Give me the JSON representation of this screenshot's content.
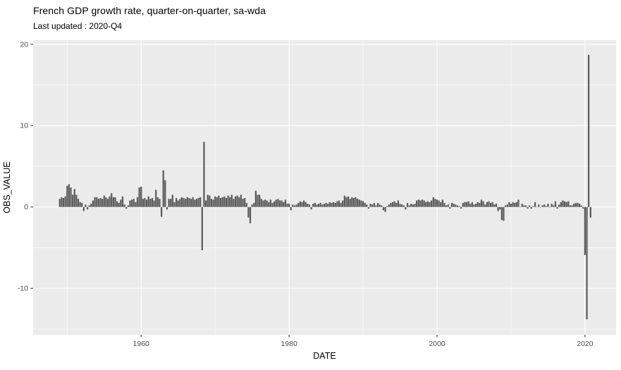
{
  "title": "French GDP growth rate, quarter-on-quarter, sa-wda",
  "subtitle": "Last updated : 2020-Q4",
  "chart_data": {
    "type": "bar",
    "title": "French GDP growth rate, quarter-on-quarter, sa-wda",
    "subtitle": "Last updated : 2020-Q4",
    "xlabel": "DATE",
    "ylabel": "OBS_VALUE",
    "legend": false,
    "grid": true,
    "theme": "ggplot-gray",
    "x_tick_labels": [
      "1960",
      "1980",
      "2000",
      "2020"
    ],
    "x_tick_years": [
      1960,
      1980,
      2000,
      2020
    ],
    "x_minor_years": [
      1950,
      1970,
      1990,
      2010
    ],
    "y_tick_labels": [
      "20",
      "10",
      "0",
      "-10"
    ],
    "y_ticks": [
      20,
      10,
      0,
      -10
    ],
    "y_minor": [
      15,
      5,
      -5,
      -15
    ],
    "xlim": [
      1945.4,
      2024.2
    ],
    "ylim": [
      -15.7,
      20.5
    ],
    "frequency": "quarterly",
    "start_period": "1949-Q1",
    "end_period": "2020-Q4",
    "notable_points": {
      "1968-Q2": -5.3,
      "1968-Q3": 8.0,
      "2008-Q4": -1.6,
      "2009-Q1": -1.7,
      "2020-Q1": -5.9,
      "2020-Q2": -13.8,
      "2020-Q3": 18.7,
      "2020-Q4": -1.3
    },
    "values": [
      1.0,
      1.2,
      1.1,
      1.3,
      2.6,
      2.8,
      2.4,
      1.5,
      2.2,
      1.5,
      1.0,
      0.6,
      0.5,
      -0.5,
      0.3,
      -0.3,
      0.2,
      0.4,
      0.8,
      1.2,
      1.2,
      1.0,
      1.1,
      1.0,
      1.4,
      1.2,
      1.0,
      1.3,
      1.7,
      1.2,
      1.2,
      0.7,
      0.5,
      0.9,
      1.3,
      0.3,
      -0.2,
      0.2,
      0.8,
      0.9,
      1.0,
      0.6,
      1.2,
      2.4,
      2.5,
      1.0,
      1.1,
      0.9,
      1.3,
      1.0,
      1.1,
      0.8,
      2.1,
      1.2,
      1.0,
      -1.2,
      4.5,
      3.3,
      -0.3,
      1.0,
      1.0,
      1.5,
      0.6,
      1.1,
      0.8,
      1.0,
      1.2,
      1.1,
      1.0,
      1.2,
      1.1,
      1.0,
      1.2,
      0.9,
      1.0,
      1.1,
      1.2,
      -5.3,
      8.0,
      0.8,
      1.5,
      1.4,
      1.0,
      0.9,
      1.3,
      1.2,
      1.4,
      1.1,
      1.2,
      1.3,
      1.1,
      1.4,
      1.2,
      1.5,
      1.0,
      1.3,
      1.4,
      1.2,
      1.5,
      1.0,
      1.1,
      0.5,
      -1.3,
      -2.0,
      0.3,
      0.5,
      2.0,
      1.5,
      1.5,
      1.0,
      0.8,
      0.9,
      0.8,
      0.6,
      0.9,
      0.5,
      0.7,
      0.9,
      1.0,
      0.8,
      0.8,
      0.6,
      0.9,
      0.4,
      0.4,
      -0.4,
      0.3,
      0.2,
      0.3,
      0.5,
      0.7,
      0.6,
      0.8,
      0.6,
      0.4,
      0.3,
      -0.3,
      0.4,
      0.5,
      0.3,
      0.4,
      0.5,
      0.3,
      0.4,
      0.5,
      0.4,
      0.6,
      0.5,
      0.6,
      0.5,
      0.7,
      0.8,
      0.5,
      0.8,
      1.4,
      1.2,
      1.3,
      1.0,
      1.2,
      1.1,
      1.2,
      1.0,
      0.9,
      0.8,
      0.7,
      0.5,
      0.3,
      -0.2,
      0.4,
      0.3,
      0.5,
      0.2,
      0.5,
      0.3,
      0.2,
      -0.4,
      -0.6,
      0.1,
      0.3,
      0.5,
      0.6,
      0.7,
      0.5,
      0.8,
      0.4,
      0.3,
      0.2,
      -0.3,
      0.5,
      0.2,
      0.4,
      0.3,
      0.4,
      0.8,
      0.9,
      0.8,
      0.9,
      0.8,
      0.6,
      0.7,
      0.6,
      0.8,
      1.2,
      1.0,
      0.9,
      0.8,
      0.6,
      0.9,
      0.5,
      0.2,
      0.3,
      -0.2,
      0.5,
      0.4,
      0.3,
      0.2,
      0.1,
      -0.2,
      0.5,
      0.6,
      0.6,
      0.7,
      0.4,
      0.6,
      0.3,
      0.4,
      0.6,
      0.5,
      0.9,
      0.7,
      0.3,
      0.6,
      0.7,
      0.5,
      0.6,
      0.3,
      0.4,
      -0.5,
      -0.3,
      -1.6,
      -1.7,
      0.2,
      0.3,
      0.6,
      0.4,
      0.6,
      0.5,
      0.6,
      0.9,
      0.0,
      0.4,
      0.2,
      0.2,
      -0.2,
      0.2,
      -0.2,
      0.1,
      0.6,
      0.0,
      0.3,
      0.0,
      0.2,
      0.3,
      0.1,
      0.4,
      0.0,
      0.4,
      0.2,
      0.7,
      -0.2,
      0.3,
      0.6,
      0.8,
      0.7,
      0.6,
      0.7,
      0.2,
      0.2,
      0.4,
      0.5,
      0.5,
      0.4,
      0.2,
      -0.2,
      -5.9,
      -13.8,
      18.7,
      -1.3
    ],
    "colors": {
      "bar": "#595959",
      "panel_background": "#EBEBEB",
      "grid": "#FFFFFF",
      "tick_text": "#4D4D4D",
      "axis_title_text": "#000000",
      "tick_mark": "#333333",
      "page_background": "#FFFFFF"
    }
  }
}
